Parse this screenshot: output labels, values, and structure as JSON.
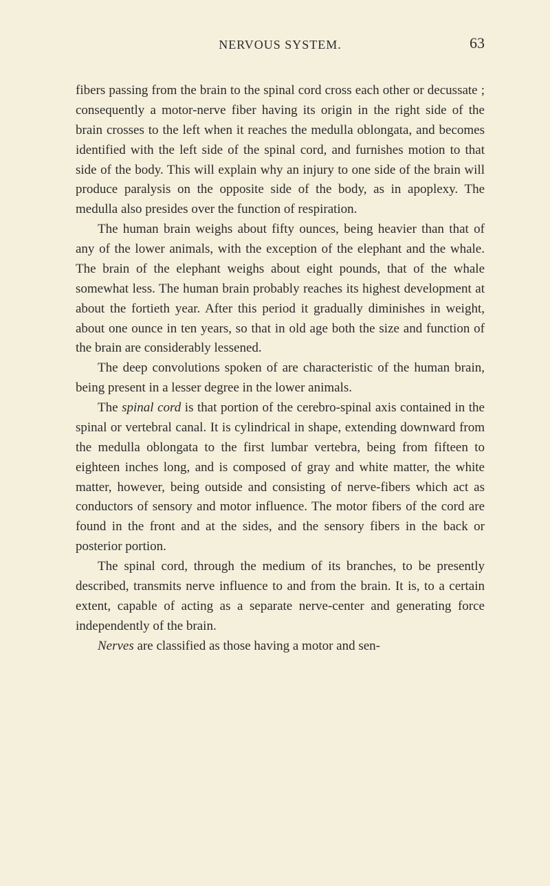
{
  "header": {
    "title": "NERVOUS SYSTEM.",
    "page_number": "63"
  },
  "paragraphs": {
    "p1": "fibers passing from the brain to the spinal cord cross each other or decussate ; consequently a motor-nerve fiber having its origin in the right side of the brain crosses to the left when it reaches the medulla oblongata, and becomes identified with the left side of the spinal cord, and furnishes motion to that side of the body. This will explain why an injury to one side of the brain will produce paralysis on the opposite side of the body, as in apoplexy. The medulla also presides over the function of respiration.",
    "p2": "The human brain weighs about fifty ounces, being heavier than that of any of the lower animals, with the exception of the elephant and the whale. The brain of the elephant weighs about eight pounds, that of the whale somewhat less. The human brain probably reaches its highest development at about the fortieth year. After this period it gradually diminishes in weight, about one ounce in ten years, so that in old age both the size and function of the brain are considerably lessened.",
    "p3": "The deep convolutions spoken of are characteristic of the human brain, being present in a lesser degree in the lower animals.",
    "p4_pre": "The ",
    "p4_italic": "spinal cord",
    "p4_post": " is that portion of the cerebro-spinal axis contained in the spinal or vertebral canal. It is cylindrical in shape, extending downward from the medulla oblongata to the first lumbar vertebra, being from fifteen to eighteen inches long, and is composed of gray and white matter, the white matter, however, being outside and consisting of nerve-fibers which act as conductors of sensory and motor influence. The motor fibers of the cord are found in the front and at the sides, and the sensory fibers in the back or posterior portion.",
    "p5": "The spinal cord, through the medium of its branches, to be presently described, transmits nerve influence to and from the brain. It is, to a certain extent, capable of acting as a separate nerve-center and generating force independently of the brain.",
    "p6_italic": "Nerves",
    "p6_post": " are classified as those having a motor and sen-"
  },
  "styling": {
    "background_color": "#f5f0dc",
    "text_color": "#2a2a2a",
    "body_fontsize": 19,
    "header_fontsize": 18,
    "pagenum_fontsize": 22,
    "line_height": 1.52,
    "font_family": "Georgia, Times New Roman, serif"
  }
}
